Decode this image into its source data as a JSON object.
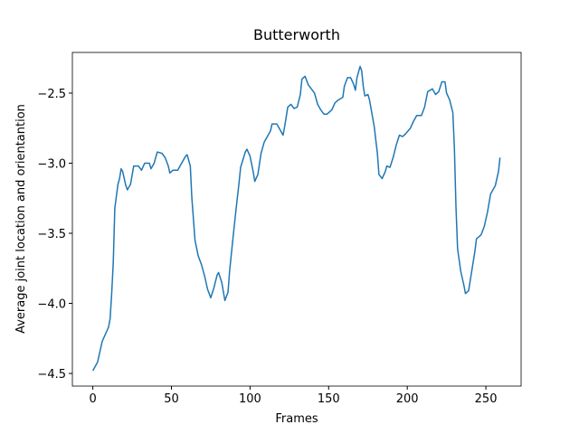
{
  "chart_data": {
    "type": "line",
    "title": "Butterworth",
    "xlabel": "Frames",
    "ylabel": "Average joint location and orientantion",
    "x": [
      0,
      3,
      6,
      10,
      11,
      12,
      13,
      14,
      16,
      17,
      18,
      19,
      21,
      22,
      24,
      26,
      29,
      31,
      33,
      36,
      37,
      39,
      41,
      44,
      46,
      48,
      49,
      51,
      54,
      56,
      59,
      60,
      62,
      63,
      65,
      67,
      69,
      71,
      73,
      75,
      77,
      79,
      80,
      82,
      84,
      86,
      87,
      89,
      91,
      93,
      94,
      97,
      98,
      100,
      102,
      103,
      105,
      107,
      109,
      110,
      113,
      114,
      117,
      118,
      121,
      122,
      124,
      126,
      128,
      130,
      132,
      133,
      135,
      137,
      139,
      141,
      143,
      145,
      147,
      149,
      152,
      154,
      156,
      159,
      160,
      162,
      164,
      166,
      167,
      168,
      170,
      171,
      172,
      173,
      175,
      176,
      179,
      181,
      182,
      184,
      186,
      187,
      189,
      191,
      193,
      195,
      197,
      199,
      202,
      204,
      206,
      209,
      211,
      213,
      216,
      218,
      220,
      222,
      224,
      225,
      227,
      229,
      230,
      231,
      232,
      234,
      236,
      237,
      239,
      241,
      243,
      244,
      247,
      249,
      251,
      253,
      256,
      258,
      259
    ],
    "series": [
      {
        "name": "Butterworth",
        "color": "#1f77b4",
        "values": [
          -4.48,
          -4.42,
          -4.27,
          -4.17,
          -4.11,
          -3.93,
          -3.71,
          -3.32,
          -3.15,
          -3.11,
          -3.04,
          -3.06,
          -3.16,
          -3.19,
          -3.15,
          -3.02,
          -3.02,
          -3.05,
          -3.0,
          -3.0,
          -3.04,
          -3.0,
          -2.92,
          -2.93,
          -2.96,
          -3.02,
          -3.07,
          -3.05,
          -3.05,
          -3.01,
          -2.95,
          -2.94,
          -3.02,
          -3.25,
          -3.55,
          -3.66,
          -3.72,
          -3.8,
          -3.9,
          -3.96,
          -3.89,
          -3.8,
          -3.78,
          -3.85,
          -3.98,
          -3.92,
          -3.77,
          -3.55,
          -3.34,
          -3.14,
          -3.03,
          -2.92,
          -2.9,
          -2.95,
          -3.06,
          -3.13,
          -3.08,
          -2.93,
          -2.85,
          -2.83,
          -2.77,
          -2.72,
          -2.72,
          -2.74,
          -2.8,
          -2.74,
          -2.6,
          -2.58,
          -2.61,
          -2.6,
          -2.51,
          -2.4,
          -2.38,
          -2.44,
          -2.47,
          -2.5,
          -2.58,
          -2.62,
          -2.65,
          -2.65,
          -2.62,
          -2.57,
          -2.55,
          -2.53,
          -2.45,
          -2.39,
          -2.39,
          -2.44,
          -2.48,
          -2.39,
          -2.31,
          -2.34,
          -2.45,
          -2.52,
          -2.51,
          -2.55,
          -2.74,
          -2.93,
          -3.08,
          -3.11,
          -3.06,
          -3.02,
          -3.03,
          -2.96,
          -2.87,
          -2.8,
          -2.81,
          -2.79,
          -2.75,
          -2.7,
          -2.66,
          -2.66,
          -2.6,
          -2.49,
          -2.47,
          -2.51,
          -2.49,
          -2.42,
          -2.42,
          -2.5,
          -2.55,
          -2.64,
          -2.9,
          -3.32,
          -3.61,
          -3.77,
          -3.87,
          -3.93,
          -3.91,
          -3.77,
          -3.63,
          -3.54,
          -3.51,
          -3.45,
          -3.35,
          -3.22,
          -3.16,
          -3.06,
          -2.96
        ]
      }
    ],
    "xlim": [
      -13,
      272.4
    ],
    "ylim": [
      -4.59,
      -2.21
    ],
    "xticks": [
      0,
      50,
      100,
      150,
      200,
      250
    ],
    "yticks": [
      {
        "value": -4.5,
        "label": "−4.5"
      },
      {
        "value": -4.0,
        "label": "−4.0"
      },
      {
        "value": -3.5,
        "label": "−3.5"
      },
      {
        "value": -3.0,
        "label": "−3.0"
      },
      {
        "value": -2.5,
        "label": "−2.5"
      }
    ]
  }
}
